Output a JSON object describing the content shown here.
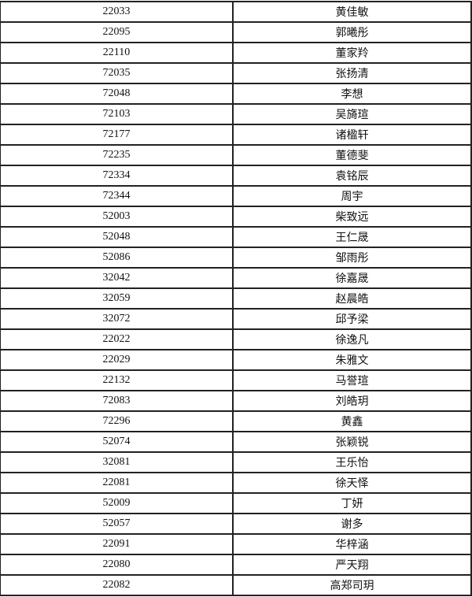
{
  "rows": [
    {
      "id": "22033",
      "name": "黄佳敏"
    },
    {
      "id": "22095",
      "name": "郭曦彤"
    },
    {
      "id": "22110",
      "name": "董家羚"
    },
    {
      "id": "72035",
      "name": "张扬清"
    },
    {
      "id": "72048",
      "name": "李想"
    },
    {
      "id": "72103",
      "name": "吴旖瑄"
    },
    {
      "id": "72177",
      "name": "诸楹轩"
    },
    {
      "id": "72235",
      "name": "董德斐"
    },
    {
      "id": "72334",
      "name": "袁铭辰"
    },
    {
      "id": "72344",
      "name": "周宇"
    },
    {
      "id": "52003",
      "name": "柴致远"
    },
    {
      "id": "52048",
      "name": "王仁晟"
    },
    {
      "id": "52086",
      "name": "邹雨彤"
    },
    {
      "id": "32042",
      "name": "徐嘉晟"
    },
    {
      "id": "32059",
      "name": "赵晨皓"
    },
    {
      "id": "32072",
      "name": "邱予梁"
    },
    {
      "id": "22022",
      "name": "徐逸凡"
    },
    {
      "id": "22029",
      "name": "朱雅文"
    },
    {
      "id": "22132",
      "name": "马誉瑄"
    },
    {
      "id": "72083",
      "name": "刘皓玥"
    },
    {
      "id": "72296",
      "name": "黄鑫"
    },
    {
      "id": "52074",
      "name": "张颖锐"
    },
    {
      "id": "32081",
      "name": "王乐怡"
    },
    {
      "id": "22081",
      "name": "徐天怿"
    },
    {
      "id": "52009",
      "name": "丁妍"
    },
    {
      "id": "52057",
      "name": "谢多"
    },
    {
      "id": "22091",
      "name": "华梓涵"
    },
    {
      "id": "22080",
      "name": "严天翔"
    },
    {
      "id": "22082",
      "name": "高郑司玥"
    }
  ]
}
